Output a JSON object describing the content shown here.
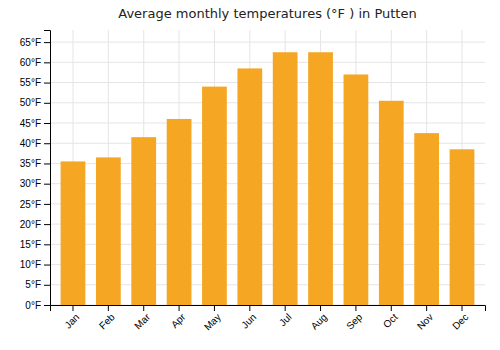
{
  "chart_data": {
    "type": "bar",
    "title": "Average monthly temperatures (°F ) in Putten",
    "categories": [
      "Jan",
      "Feb",
      "Mar",
      "Apr",
      "May",
      "Jun",
      "Jul",
      "Aug",
      "Sep",
      "Oct",
      "Nov",
      "Dec"
    ],
    "values": [
      35.5,
      36.5,
      41.5,
      46.0,
      54.0,
      58.5,
      62.5,
      62.5,
      57.0,
      50.5,
      42.5,
      38.5
    ],
    "color": "#F5A623",
    "ylim": [
      0,
      68
    ],
    "yticks": [
      {
        "value": 0,
        "label": "0°F"
      },
      {
        "value": 5,
        "label": "5°F"
      },
      {
        "value": 10,
        "label": "10°F"
      },
      {
        "value": 15,
        "label": "15°F"
      },
      {
        "value": 20,
        "label": "20°F"
      },
      {
        "value": 25,
        "label": "25°F"
      },
      {
        "value": 30,
        "label": "30°F"
      },
      {
        "value": 35,
        "label": "35°F"
      },
      {
        "value": 40,
        "label": "40°F"
      },
      {
        "value": 45,
        "label": "45°F"
      },
      {
        "value": 50,
        "label": "50°F"
      },
      {
        "value": 55,
        "label": "55°F"
      },
      {
        "value": 60,
        "label": "60°F"
      },
      {
        "value": 65,
        "label": "65°F"
      }
    ],
    "grid": true
  }
}
